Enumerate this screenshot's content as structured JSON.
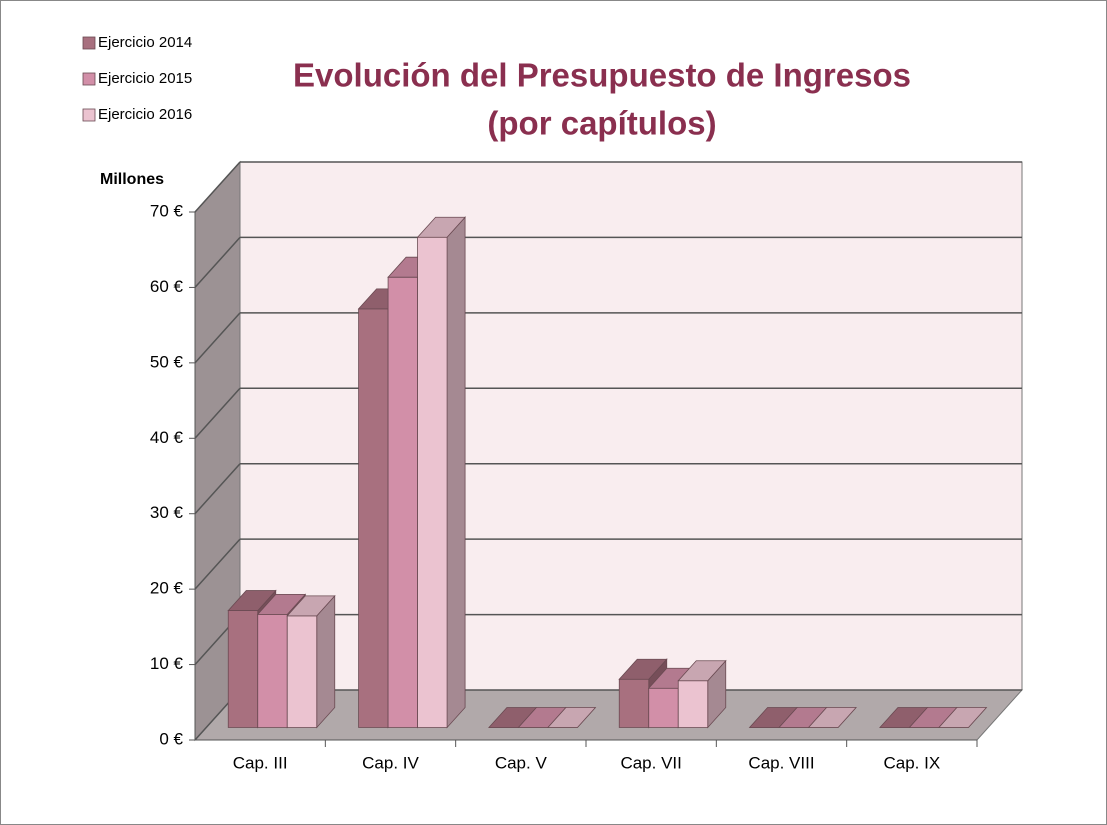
{
  "chart_data": {
    "type": "bar3d",
    "title": [
      "Evolución del Presupuesto de Ingresos",
      "(por capítulos)"
    ],
    "y_label": "Millones",
    "categories": [
      "Cap. III",
      "Cap. IV",
      "Cap. V",
      "Cap. VII",
      "Cap. VIII",
      "Cap. IX"
    ],
    "series": [
      {
        "name": "Ejercicio 2014",
        "color": "#a8707f",
        "values": [
          15.5,
          55.5,
          0,
          6.4,
          0,
          0
        ]
      },
      {
        "name": "Ejercicio 2015",
        "color": "#d28fa8",
        "values": [
          15,
          59.7,
          0,
          5.2,
          0,
          0
        ]
      },
      {
        "name": "Ejercicio 2016",
        "color": "#ebc3d0",
        "values": [
          14.8,
          65,
          0,
          6.2,
          0,
          0
        ]
      }
    ],
    "ylim": [
      0,
      70
    ],
    "yticks": [
      {
        "value": 0,
        "label": "0 €"
      },
      {
        "value": 10,
        "label": "10 €"
      },
      {
        "value": 20,
        "label": "20 €"
      },
      {
        "value": 30,
        "label": "30 €"
      },
      {
        "value": 40,
        "label": "40 €"
      },
      {
        "value": 50,
        "label": "50 €"
      },
      {
        "value": 60,
        "label": "60 €"
      },
      {
        "value": 70,
        "label": "70 €"
      }
    ],
    "grid": true,
    "legend": "top-left"
  }
}
